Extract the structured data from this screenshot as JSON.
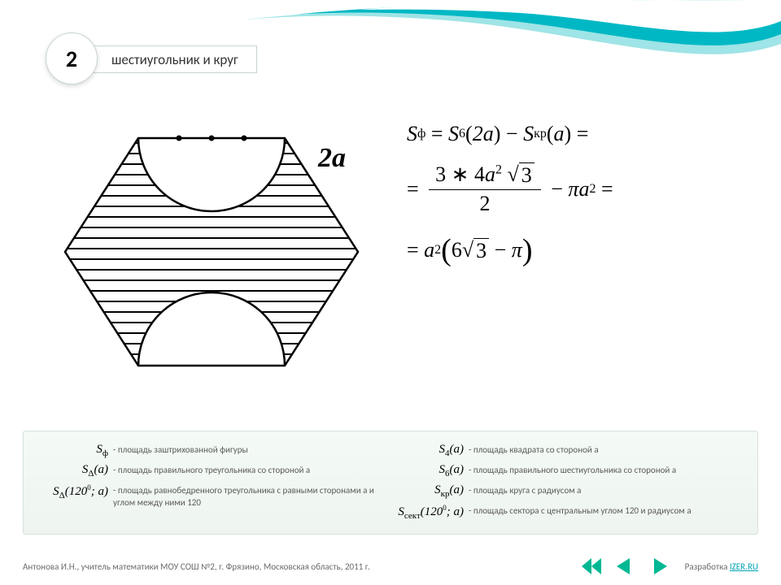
{
  "header": {
    "badge_number": "2",
    "title": "шестиугольник и круг"
  },
  "wave": {
    "outer_color": "#9fe4e6",
    "inner_color": "#00b8c4",
    "white": "#ffffff"
  },
  "figure": {
    "type": "diagram",
    "label": "2a",
    "hexagon_side_half_width": 1.0,
    "stroke": "#000000",
    "stroke_width": 2,
    "hatch_spacing": 12,
    "hatch_width": 2,
    "background": "#ffffff",
    "dot_radius": 3,
    "dot_count": 3
  },
  "formulas": {
    "line1": {
      "lhs_sub": "ф",
      "rhs_s6_sub": "6",
      "arg6": "2a",
      "rhs_skr_sub": "кр",
      "arg_kr": "a"
    },
    "line2": {
      "frac_num": "3 ∗ 4a²√3",
      "frac_num_rad": "3",
      "frac_den": "2",
      "tail": "πa²"
    },
    "line3": {
      "factor": "a²",
      "paren": "6√3 − π",
      "rad": "3"
    }
  },
  "legend": {
    "left": [
      {
        "sym_html": "S<sub class='s'>ф</sub>",
        "txt": "- площадь заштрихованной фигуры"
      },
      {
        "sym_html": "S<sub class='s'>Δ</sub>(a)",
        "txt": "- площадь правильного треугольника со стороной a"
      },
      {
        "sym_html": "S<sub class='s'>Δ</sub>(120<span class='sup0'>0</span>; a)",
        "txt": "- площадь равнобедренного треугольника с равными сторонами a и углом между ними 120"
      }
    ],
    "right": [
      {
        "sym_html": "S<sub class='s'>4</sub>(a)",
        "txt": "- площадь квадрата со стороной a"
      },
      {
        "sym_html": "S<sub class='s'>6</sub>(a)",
        "txt": "- площадь правильного шестиугольника со стороной a"
      },
      {
        "sym_html": "S<sub class='s'>кр</sub>(a)",
        "txt": "- площадь круга с радиусом a"
      },
      {
        "sym_html": "S<sub class='s'>сект</sub>(120<span class='sup0'>0</span>; a)",
        "txt": "- площадь сектора с центральным углом 120 и радиусом a"
      }
    ]
  },
  "footer": {
    "credits": "Антонова И.Н., учитель математики МОУ СОШ №2, г. Фрязино, Московская область, 2011 г.",
    "dev_label": "Разработка ",
    "dev_link": "IZER.RU"
  },
  "nav": {
    "color": "#00b894",
    "buttons": [
      "back",
      "prev",
      "next"
    ]
  }
}
